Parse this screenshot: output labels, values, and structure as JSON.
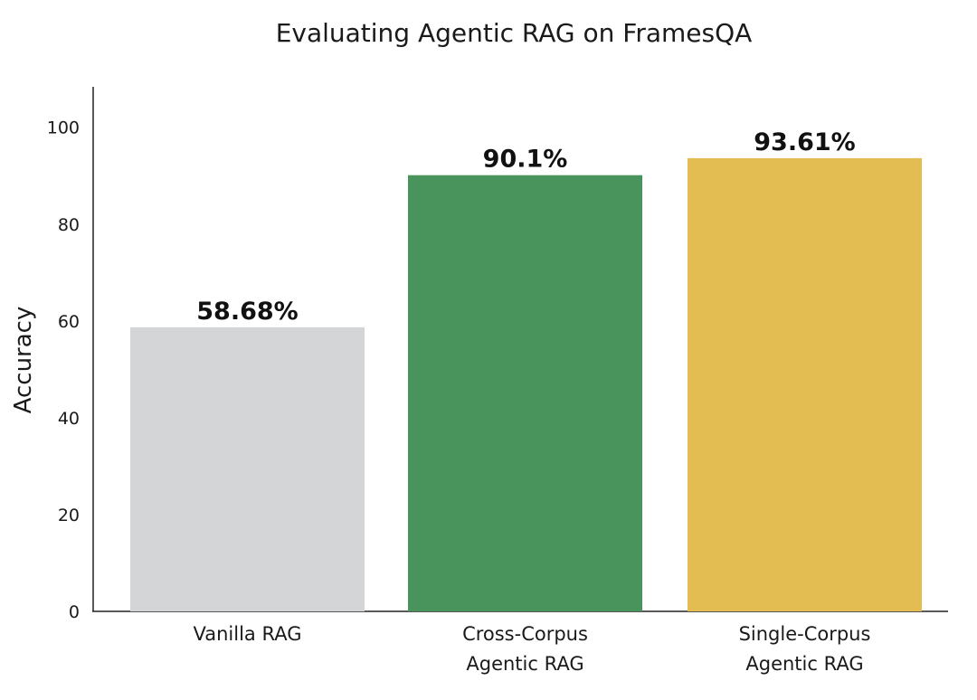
{
  "chart_data": {
    "type": "bar",
    "title": "Evaluating Agentic RAG on FramesQA",
    "xlabel": "",
    "ylabel": "Accuracy",
    "ylim": [
      0,
      107
    ],
    "yticks": [
      "0",
      "20",
      "40",
      "60",
      "80",
      "100"
    ],
    "grid": false,
    "categories": [
      [
        "Vanilla RAG"
      ],
      [
        "Cross-Corpus",
        "Agentic RAG"
      ],
      [
        "Single-Corpus",
        "Agentic RAG"
      ]
    ],
    "values": [
      58.68,
      90.1,
      93.61
    ],
    "data_labels": [
      "58.68%",
      "90.1%",
      "93.61%"
    ],
    "colors": [
      "#d4d5d7",
      "#49935c",
      "#e3bd52"
    ]
  }
}
